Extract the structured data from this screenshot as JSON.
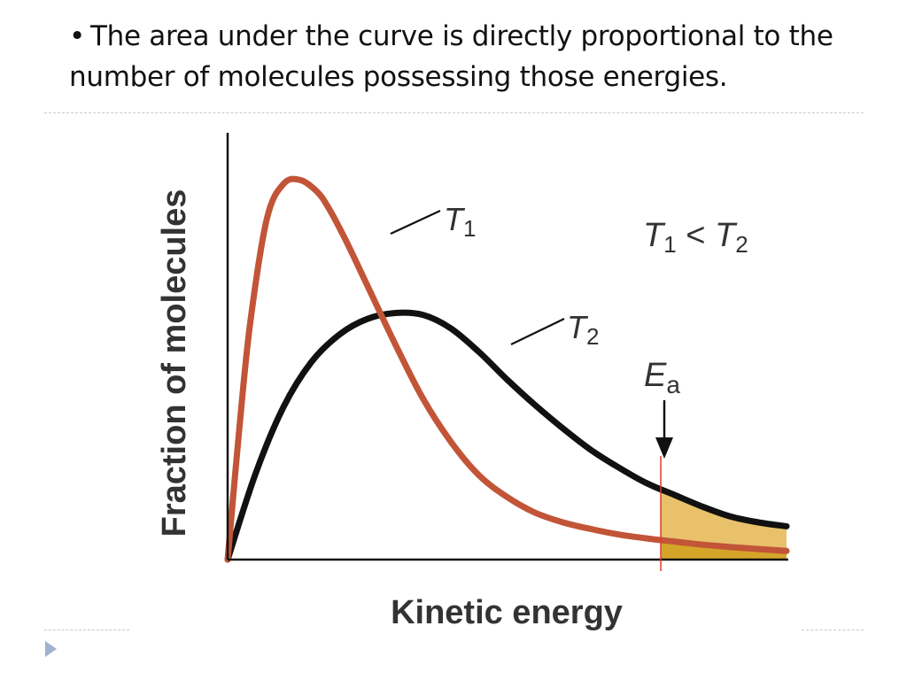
{
  "slide": {
    "bullet_glyph": "•",
    "bullet_text": "The area under the curve is directly proportional to the number of molecules possessing those energies."
  },
  "nav": {
    "icon": "triangle-right-icon"
  },
  "chart_data": {
    "type": "line",
    "title": "",
    "xlabel": "Kinetic energy",
    "ylabel": "Fraction of molecules",
    "relation_label": {
      "base": "T",
      "sub1": "1",
      "op": " < ",
      "sub2": "2"
    },
    "xlim": [
      0,
      10
    ],
    "ylim": [
      0,
      10
    ],
    "grid": false,
    "activation_energy": {
      "base": "E",
      "sub": "a",
      "x": 7.75
    },
    "series": [
      {
        "name": "T1",
        "label_base": "T",
        "label_sub": "1",
        "color": "#c25537",
        "x": [
          0,
          0.2,
          0.4,
          0.7,
          1.0,
          1.3,
          1.6,
          1.8,
          2.1,
          2.5,
          3.0,
          3.5,
          4.0,
          4.5,
          5.0,
          5.5,
          6.0,
          6.5,
          7.0,
          7.5,
          8.0,
          8.5,
          9.0,
          9.5,
          10.0
        ],
        "y": [
          0,
          3.2,
          6.0,
          8.7,
          9.6,
          9.7,
          9.4,
          9.0,
          8.2,
          7.0,
          5.5,
          4.1,
          3.0,
          2.15,
          1.6,
          1.2,
          0.95,
          0.78,
          0.64,
          0.54,
          0.46,
          0.38,
          0.32,
          0.27,
          0.22
        ]
      },
      {
        "name": "T2",
        "label_base": "T",
        "label_sub": "2",
        "color": "#111111",
        "x": [
          0,
          0.5,
          1.0,
          1.5,
          2.0,
          2.5,
          3.0,
          3.5,
          4.0,
          4.5,
          5.0,
          5.5,
          6.0,
          6.5,
          7.0,
          7.5,
          8.0,
          8.5,
          9.0,
          9.5,
          10.0
        ],
        "y": [
          0,
          2.2,
          3.9,
          5.05,
          5.75,
          6.15,
          6.3,
          6.25,
          5.9,
          5.3,
          4.6,
          3.95,
          3.35,
          2.8,
          2.35,
          1.95,
          1.65,
          1.35,
          1.1,
          0.95,
          0.85
        ]
      }
    ],
    "shading": {
      "from_x": 7.75,
      "to_x": 10,
      "light_color": "#e8c16a",
      "dark_color": "#d5a52a"
    },
    "marker_line_color": "#e23a2a"
  }
}
